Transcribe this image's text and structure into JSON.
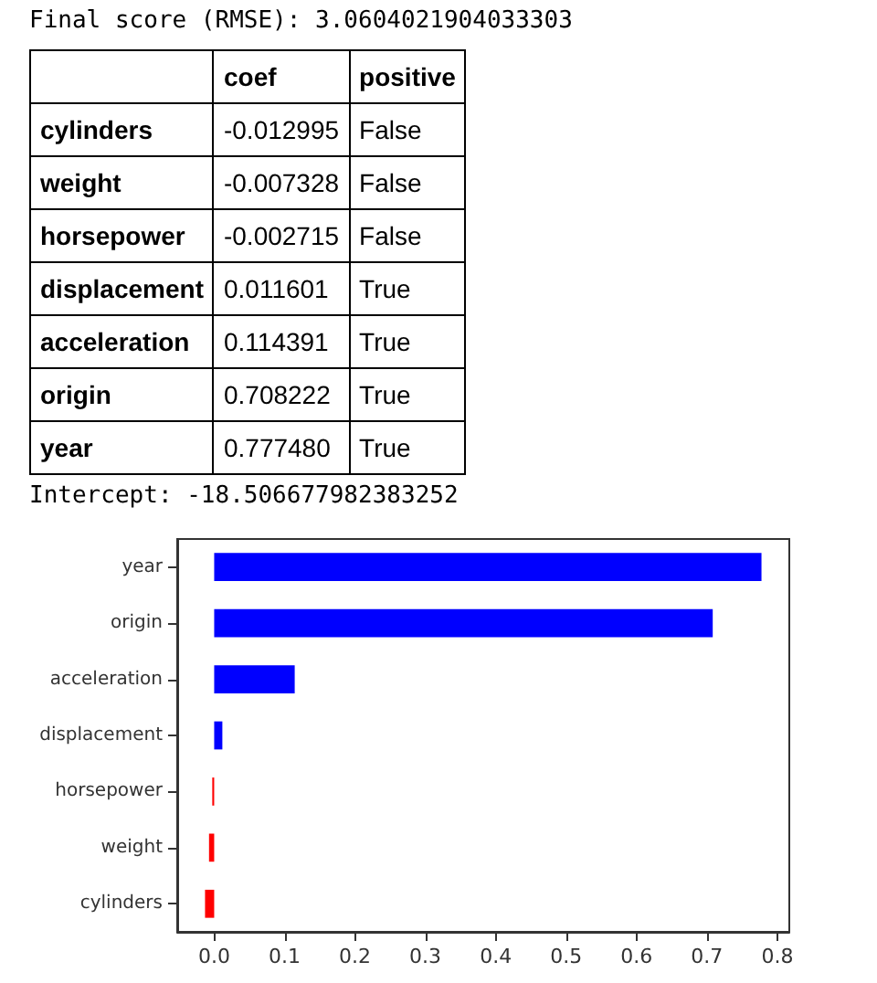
{
  "chart_data": {
    "type": "bar",
    "orientation": "horizontal",
    "categories": [
      "year",
      "origin",
      "acceleration",
      "displacement",
      "horsepower",
      "weight",
      "cylinders"
    ],
    "values": [
      0.77748,
      0.708222,
      0.114391,
      0.011601,
      -0.002715,
      -0.007328,
      -0.012995
    ],
    "colors": [
      "#0000ff",
      "#0000ff",
      "#0000ff",
      "#0000ff",
      "#ff0000",
      "#ff0000",
      "#ff0000"
    ],
    "xlim": [
      -0.0525,
      0.817
    ],
    "xticks": [
      {
        "value": 0,
        "label": "0.0"
      },
      {
        "value": 0.1,
        "label": "0.1"
      },
      {
        "value": 0.2,
        "label": "0.2"
      },
      {
        "value": 0.3,
        "label": "0.3"
      },
      {
        "value": 0.4,
        "label": "0.4"
      },
      {
        "value": 0.5,
        "label": "0.5"
      },
      {
        "value": 0.6,
        "label": "0.6"
      },
      {
        "value": 0.7,
        "label": "0.7"
      },
      {
        "value": 0.8,
        "label": "0.8"
      }
    ],
    "grid": false,
    "annotations": [
      "Final score (RMSE): 3.0604021904033303",
      "Intercept: -18.506677982383252",
      "coef",
      "positive",
      "-0.012995",
      "-0.007328",
      "-0.002715",
      "0.011601",
      "0.114391",
      "0.708222",
      "0.777480",
      "False",
      "False",
      "False",
      "True",
      "True",
      "True",
      "True"
    ]
  }
}
